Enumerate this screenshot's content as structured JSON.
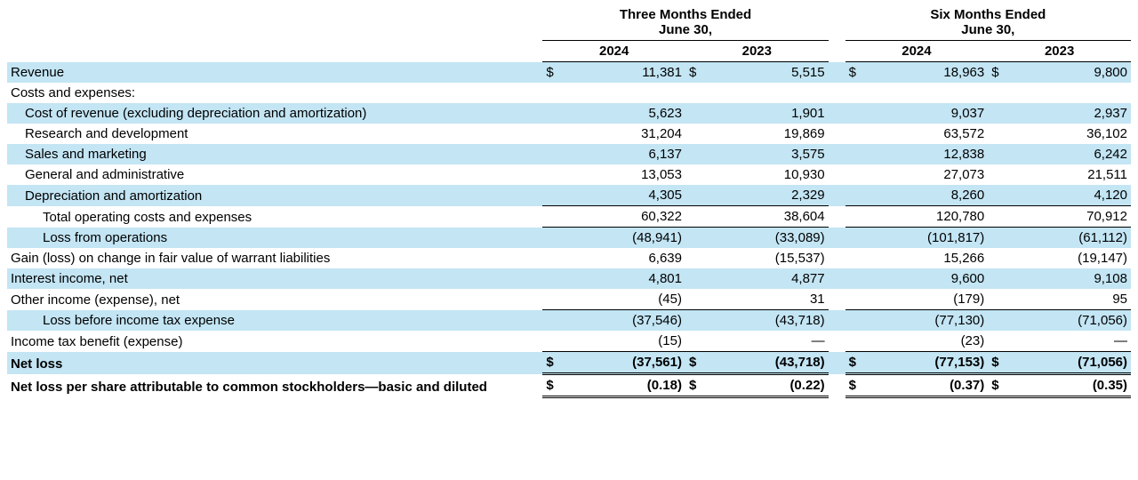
{
  "colors": {
    "shade_bg": "#c3e5f4",
    "text": "#000000",
    "background": "#ffffff",
    "rule": "#000000"
  },
  "typography": {
    "font_family": "Arial, Helvetica, sans-serif",
    "font_size_pt": 11,
    "header_weight": "bold"
  },
  "currency_symbol": "$",
  "em_dash": "—",
  "periods": {
    "group1": {
      "line1": "Three Months Ended",
      "line2": "June 30,"
    },
    "group2": {
      "line1": "Six Months Ended",
      "line2": "June 30,"
    }
  },
  "years": {
    "c1": "2024",
    "c2": "2023",
    "c3": "2024",
    "c4": "2023"
  },
  "rows": [
    {
      "id": "revenue",
      "label": "Revenue",
      "indent": 0,
      "shade": true,
      "bold": false,
      "sym": true,
      "top_border": false,
      "bottom_border": false,
      "v": [
        "11,381",
        "5,515",
        "18,963",
        "9,800"
      ]
    },
    {
      "id": "costs_hdr",
      "label": "Costs and expenses:",
      "indent": 0,
      "shade": false,
      "bold": false,
      "sym": false,
      "top_border": false,
      "bottom_border": false,
      "v": [
        "",
        "",
        "",
        ""
      ]
    },
    {
      "id": "cost_rev",
      "label": "Cost of revenue (excluding depreciation and amortization)",
      "indent": 1,
      "shade": true,
      "bold": false,
      "sym": false,
      "top_border": false,
      "bottom_border": false,
      "v": [
        "5,623",
        "1,901",
        "9,037",
        "2,937"
      ]
    },
    {
      "id": "rnd",
      "label": "Research and development",
      "indent": 1,
      "shade": false,
      "bold": false,
      "sym": false,
      "top_border": false,
      "bottom_border": false,
      "v": [
        "31,204",
        "19,869",
        "63,572",
        "36,102"
      ]
    },
    {
      "id": "sales_mkt",
      "label": "Sales and marketing",
      "indent": 1,
      "shade": true,
      "bold": false,
      "sym": false,
      "top_border": false,
      "bottom_border": false,
      "v": [
        "6,137",
        "3,575",
        "12,838",
        "6,242"
      ]
    },
    {
      "id": "ga",
      "label": "General and administrative",
      "indent": 1,
      "shade": false,
      "bold": false,
      "sym": false,
      "top_border": false,
      "bottom_border": false,
      "v": [
        "13,053",
        "10,930",
        "27,073",
        "21,511"
      ]
    },
    {
      "id": "dep_amort",
      "label": "Depreciation and amortization",
      "indent": 1,
      "shade": true,
      "bold": false,
      "sym": false,
      "top_border": false,
      "bottom_border": true,
      "v": [
        "4,305",
        "2,329",
        "8,260",
        "4,120"
      ]
    },
    {
      "id": "total_op",
      "label": "Total operating costs and expenses",
      "indent": 2,
      "shade": false,
      "bold": false,
      "sym": false,
      "top_border": false,
      "bottom_border": true,
      "v": [
        "60,322",
        "38,604",
        "120,780",
        "70,912"
      ]
    },
    {
      "id": "loss_ops",
      "label": "Loss from operations",
      "indent": 2,
      "shade": true,
      "bold": false,
      "sym": false,
      "top_border": false,
      "bottom_border": false,
      "v": [
        "(48,941)",
        "(33,089)",
        "(101,817)",
        "(61,112)"
      ]
    },
    {
      "id": "warrant",
      "label": "Gain (loss) on change in fair value of warrant liabilities",
      "indent": 0,
      "shade": false,
      "bold": false,
      "sym": false,
      "top_border": false,
      "bottom_border": false,
      "v": [
        "6,639",
        "(15,537)",
        "15,266",
        "(19,147)"
      ]
    },
    {
      "id": "interest",
      "label": "Interest income, net",
      "indent": 0,
      "shade": true,
      "bold": false,
      "sym": false,
      "top_border": false,
      "bottom_border": false,
      "v": [
        "4,801",
        "4,877",
        "9,600",
        "9,108"
      ]
    },
    {
      "id": "other",
      "label": "Other income (expense), net",
      "indent": 0,
      "shade": false,
      "bold": false,
      "sym": false,
      "top_border": false,
      "bottom_border": true,
      "v": [
        "(45)",
        "31",
        "(179)",
        "95"
      ]
    },
    {
      "id": "loss_before_tax",
      "label": "Loss before income tax expense",
      "indent": 2,
      "shade": true,
      "bold": false,
      "sym": false,
      "top_border": false,
      "bottom_border": false,
      "v": [
        "(37,546)",
        "(43,718)",
        "(77,130)",
        "(71,056)"
      ]
    },
    {
      "id": "tax",
      "label": "Income tax benefit (expense)",
      "indent": 0,
      "shade": false,
      "bold": false,
      "sym": false,
      "top_border": false,
      "bottom_border": true,
      "v": [
        "(15)",
        "—",
        "(23)",
        "—"
      ]
    },
    {
      "id": "net_loss",
      "label": "Net loss",
      "indent": 0,
      "shade": true,
      "bold": true,
      "sym": true,
      "top_border": false,
      "bottom_border": false,
      "double_bottom": true,
      "v": [
        "(37,561)",
        "(43,718)",
        "(77,153)",
        "(71,056)"
      ]
    },
    {
      "id": "eps",
      "label": "Net loss per share attributable to common stockholders—basic and diluted",
      "indent": 0,
      "shade": false,
      "bold": true,
      "sym": true,
      "top_border": false,
      "bottom_border": false,
      "double_bottom": true,
      "v": [
        "(0.18)",
        "(0.22)",
        "(0.37)",
        "(0.35)"
      ]
    }
  ]
}
